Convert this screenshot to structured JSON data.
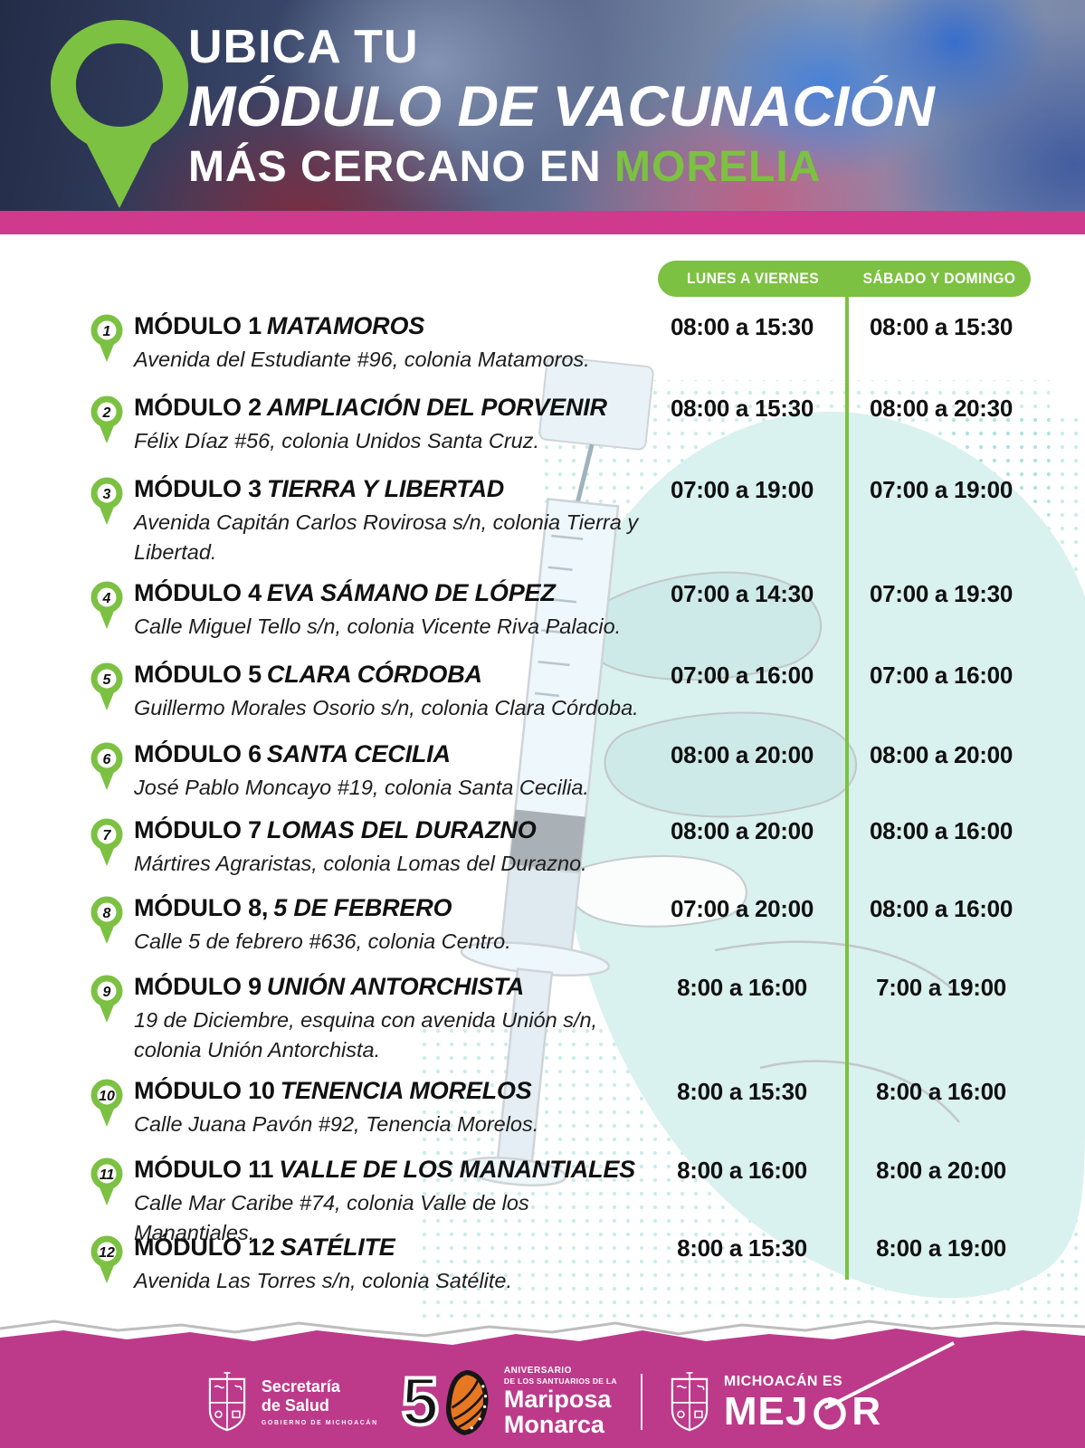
{
  "header": {
    "line1": "UBICA TU",
    "line2": "MÓDULO DE VACUNACIÓN",
    "line3_prefix": "MÁS CERCANO EN ",
    "line3_highlight": "MORELIA"
  },
  "columns": {
    "weekdays": "LUNES A VIERNES",
    "weekend": "SÁBADO Y DOMINGO"
  },
  "modules": [
    {
      "num": "1",
      "title_prefix": "MÓDULO 1",
      "name": "MATAMOROS",
      "address": "Avenida del Estudiante #96, colonia Matamoros.",
      "weekdays": "08:00 a 15:30",
      "weekend": "08:00 a 15:30"
    },
    {
      "num": "2",
      "title_prefix": "MÓDULO 2",
      "name": "AMPLIACIÓN DEL PORVENIR",
      "address": "Félix Díaz #56, colonia Unidos Santa Cruz.",
      "weekdays": "08:00 a 15:30",
      "weekend": "08:00 a 20:30"
    },
    {
      "num": "3",
      "title_prefix": "MÓDULO 3",
      "name": "TIERRA Y LIBERTAD",
      "address": "Avenida Capitán Carlos Rovirosa s/n, colonia Tierra y Libertad.",
      "weekdays": "07:00 a 19:00",
      "weekend": "07:00 a 19:00"
    },
    {
      "num": "4",
      "title_prefix": "MÓDULO 4",
      "name": "EVA SÁMANO DE LÓPEZ",
      "address": "Calle Miguel Tello s/n, colonia Vicente Riva Palacio.",
      "weekdays": "07:00 a 14:30",
      "weekend": "07:00 a 19:30"
    },
    {
      "num": "5",
      "title_prefix": "MÓDULO 5",
      "name": "CLARA CÓRDOBA",
      "address": "Guillermo Morales Osorio s/n, colonia Clara Córdoba.",
      "weekdays": "07:00 a 16:00",
      "weekend": "07:00 a 16:00"
    },
    {
      "num": "6",
      "title_prefix": "MÓDULO 6",
      "name": "SANTA CECILIA",
      "address": "José Pablo Moncayo #19, colonia Santa Cecilia.",
      "weekdays": "08:00 a 20:00",
      "weekend": "08:00 a 20:00"
    },
    {
      "num": "7",
      "title_prefix": "MÓDULO 7",
      "name": "LOMAS DEL DURAZNO",
      "address": "Mártires Agraristas, colonia Lomas del Durazno.",
      "weekdays": "08:00 a 20:00",
      "weekend": "08:00 a 16:00"
    },
    {
      "num": "8",
      "title_prefix": "MÓDULO 8,",
      "name": "5 DE FEBRERO",
      "address": "Calle 5 de febrero #636, colonia Centro.",
      "weekdays": "07:00 a 20:00",
      "weekend": "08:00 a 16:00"
    },
    {
      "num": "9",
      "title_prefix": "MÓDULO 9",
      "name": "UNIÓN ANTORCHISTA",
      "address": "19 de Diciembre, esquina con avenida Unión s/n, colonia Unión Antorchista.",
      "weekdays": "8:00 a 16:00",
      "weekend": "7:00 a 19:00"
    },
    {
      "num": "10",
      "title_prefix": "MÓDULO 10",
      "name": "TENENCIA MORELOS",
      "address": "Calle Juana Pavón #92, Tenencia Morelos.",
      "weekdays": "8:00 a 15:30",
      "weekend": "8:00 a 16:00"
    },
    {
      "num": "11",
      "title_prefix": "MÓDULO 11",
      "name": "VALLE DE LOS MANANTIALES",
      "address": "Calle Mar Caribe #74, colonia Valle de los Manantiales.",
      "weekdays": "8:00 a 16:00",
      "weekend": "8:00 a 20:00"
    },
    {
      "num": "12",
      "title_prefix": "MÓDULO 12",
      "name": "SATÉLITE",
      "address": "Avenida Las Torres s/n, colonia Satélite.",
      "weekdays": "8:00 a 15:30",
      "weekend": "8:00 a 19:00"
    }
  ],
  "footer": {
    "salud_line1": "Secretaría",
    "salud_line2": "de Salud",
    "salud_line3": "GOBIERNO DE MICHOACÁN",
    "anniv_number": "5",
    "anniv_top": "ANIVERSARIO",
    "anniv_sub": "DE LOS SANTUARIOS DE LA",
    "anniv_name1": "Mariposa",
    "anniv_name2": "Monarca",
    "mich_line1": "MICHOACÁN ES",
    "mich_line2_a": "MEJ",
    "mich_line2_b": "R"
  },
  "icons": {
    "header_pin": "location-pin-icon",
    "row_pin": "numbered-map-pin-icon",
    "shield": "coat-of-arms-icon",
    "butterfly": "monarch-butterfly-icon",
    "cable_car": "cable-car-icon"
  },
  "colors": {
    "accent_green": "#7cc142",
    "bar_pink": "#cf3a8d",
    "footer_pink": "#bd3a8a",
    "watermark_teal": "#d9f1ef",
    "butterfly_orange": "#e87722",
    "text_black": "#111111",
    "white": "#ffffff"
  }
}
